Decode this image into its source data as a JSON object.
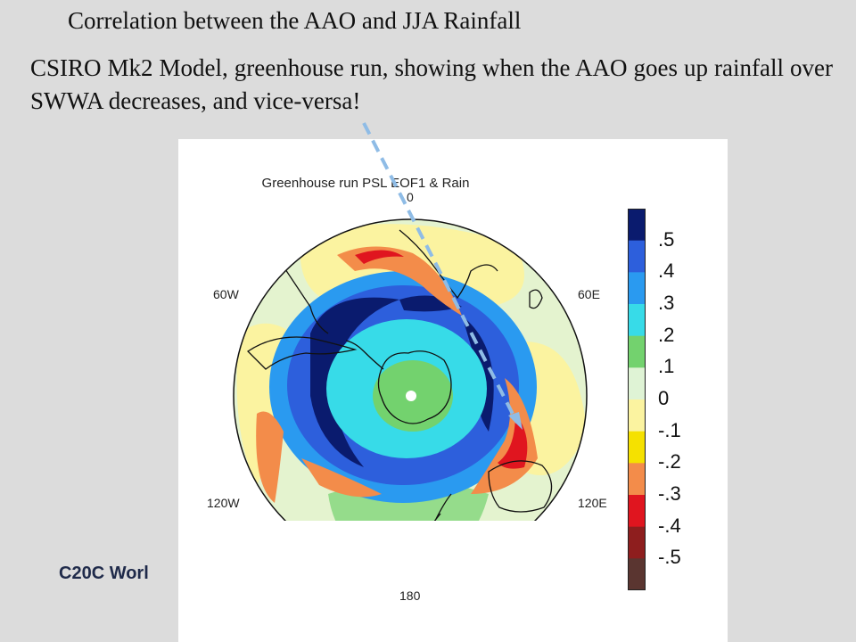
{
  "slide": {
    "title": "Correlation between the AAO  and JJA Rainfall",
    "subtitle": "CSIRO Mk2 Model, greenhouse run, showing when the AAO goes up rainfall  over SWWA decreases, and vice-versa!",
    "footer": "C20C Worl"
  },
  "figure": {
    "title": "Greenhouse run  PSL EOF1 & Rain",
    "lon_labels": {
      "top": "0",
      "upper_left": "60W",
      "upper_right": "60E",
      "lower_left": "120W",
      "lower_right": "120E",
      "bottom": "180"
    },
    "colorbar": {
      "labels": [
        ".5",
        ".4",
        ".3",
        ".2",
        ".1",
        "0",
        "-.1",
        "-.2",
        "-.3",
        "-.4",
        "-.5"
      ],
      "colors": [
        "#0a1b6e",
        "#2d5fdc",
        "#2a9af0",
        "#37dbe8",
        "#73d26e",
        "#dff3d5",
        "#fbf3a0",
        "#f5e100",
        "#f38c4a",
        "#e0151f",
        "#8e1e1e",
        "#5a3530"
      ]
    },
    "colors": {
      "ocean_neutral": "#e4f3cf",
      "land_outline": "#111111",
      "arrow": "#8fbce6"
    }
  }
}
